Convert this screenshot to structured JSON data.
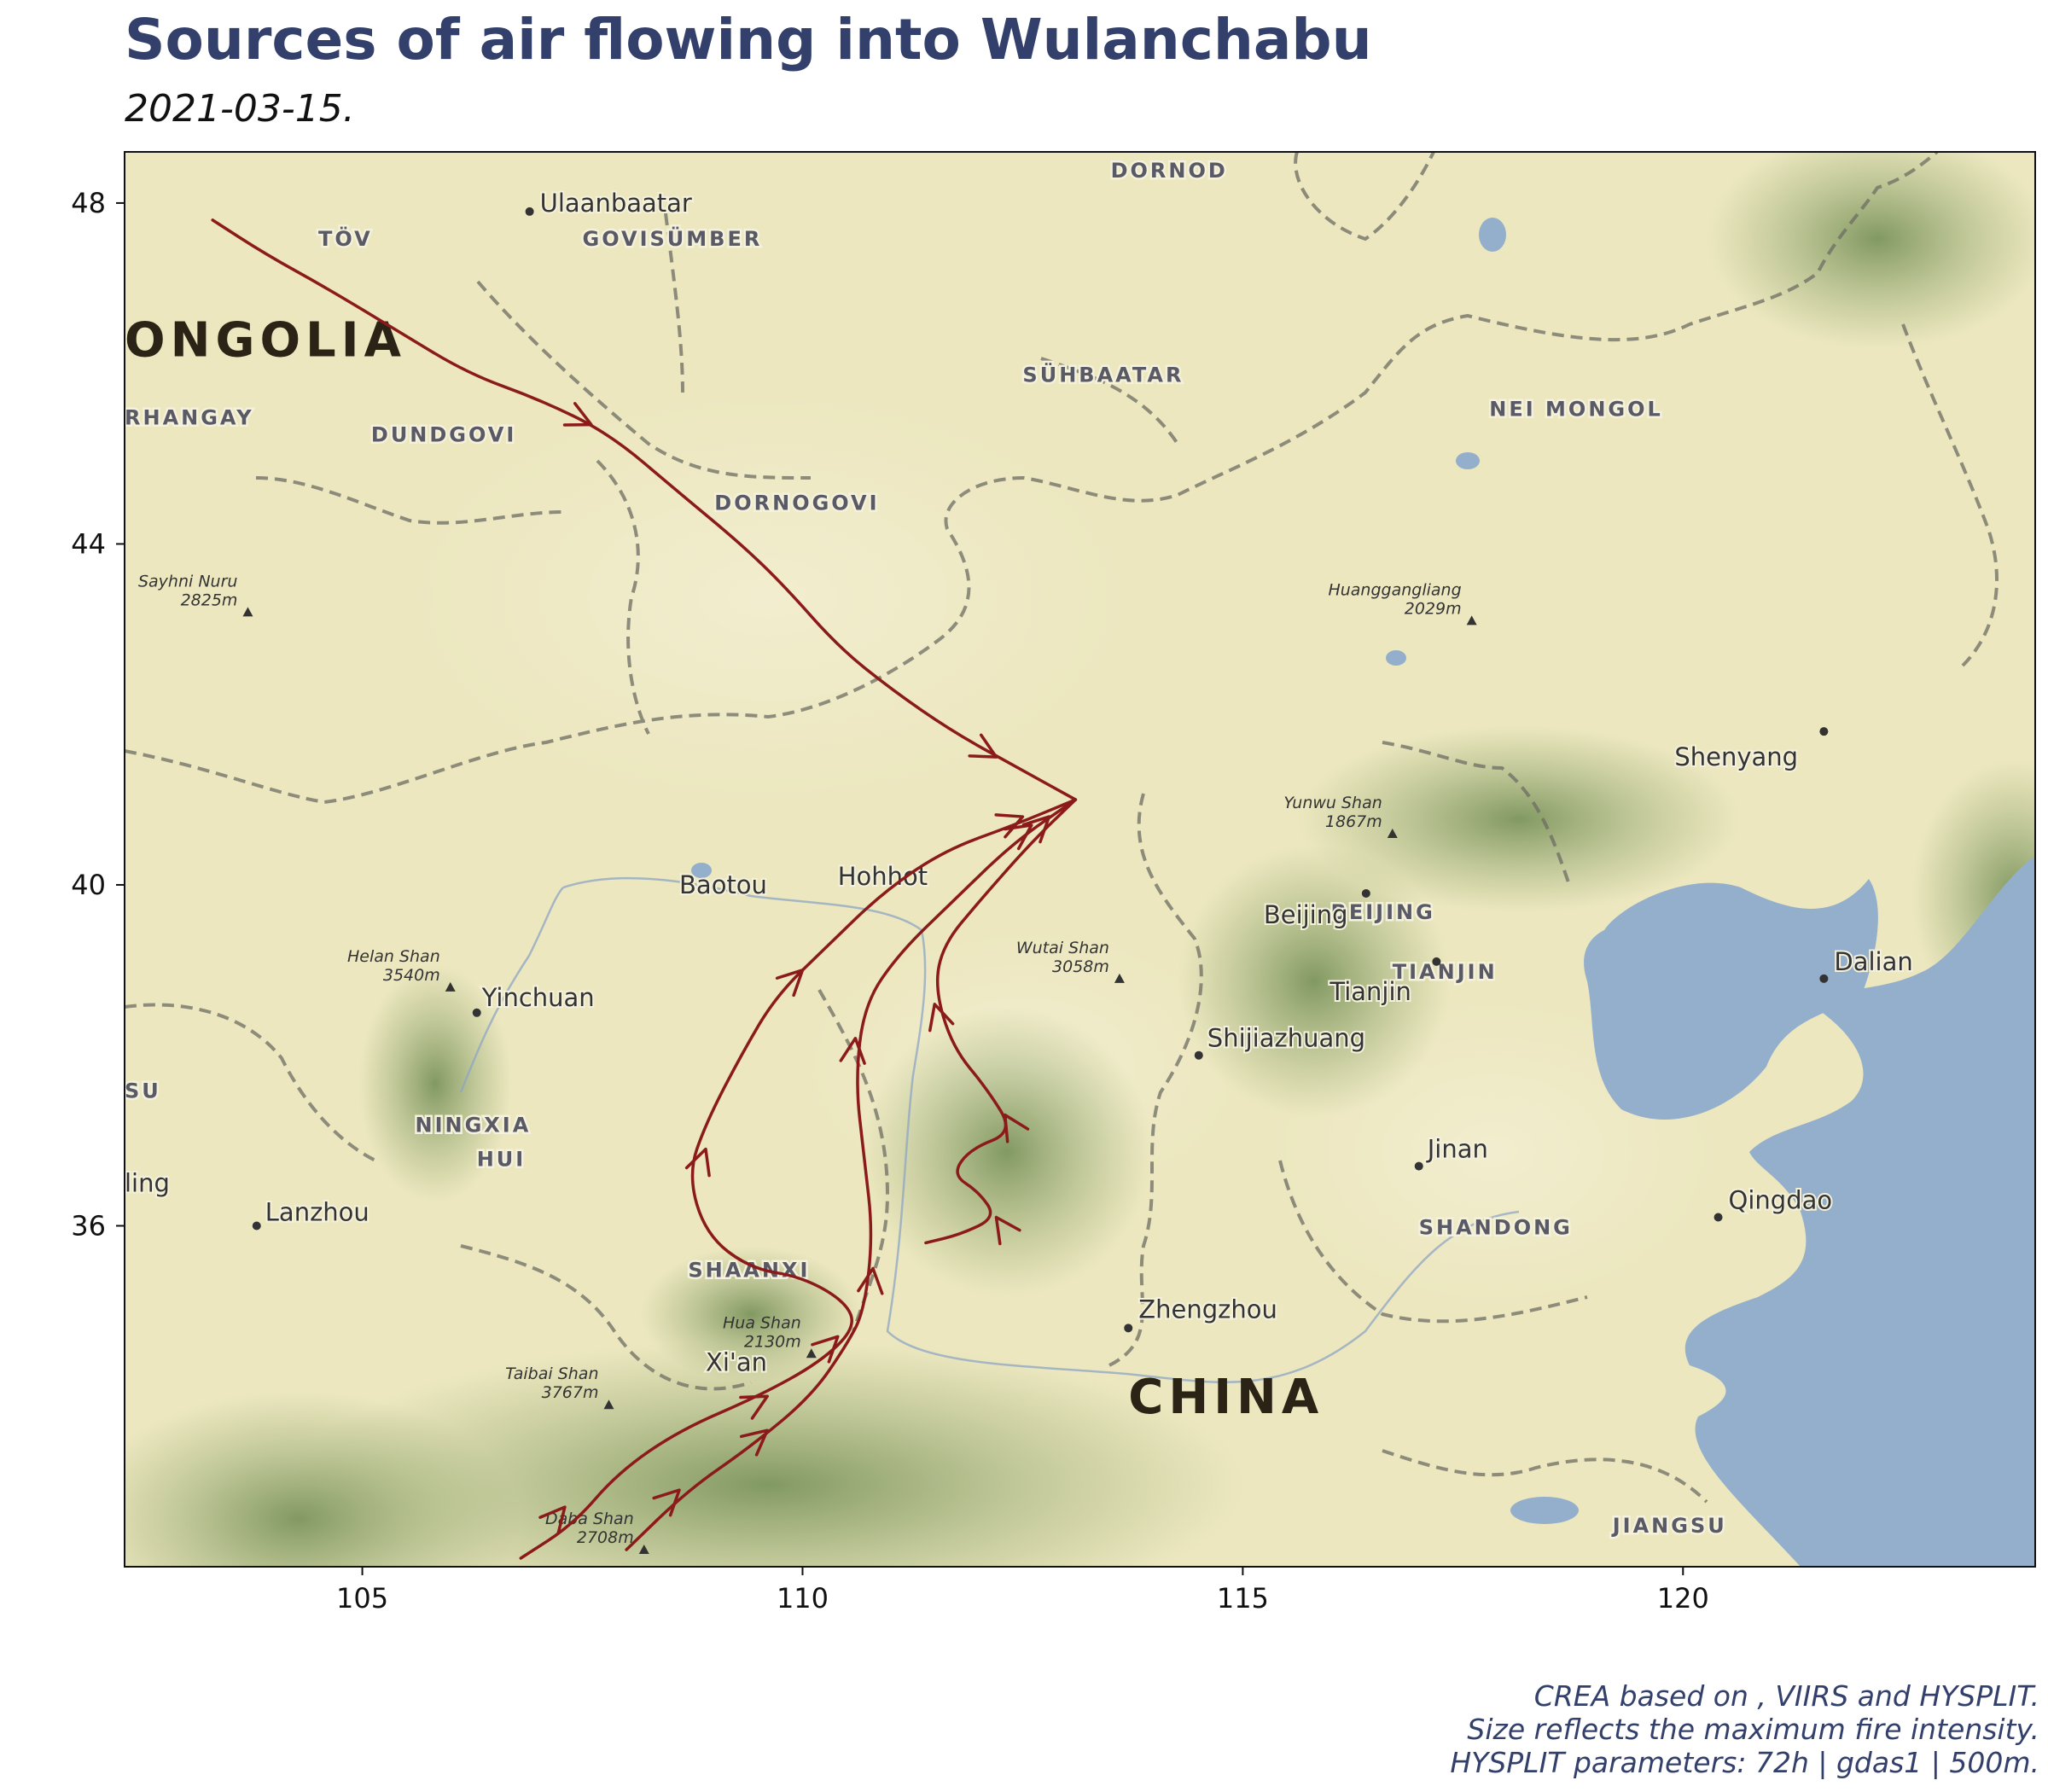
{
  "title": "Sources of air flowing into Wulanchabu",
  "subtitle": "2021-03-15.",
  "caption": [
    "CREA based on , VIIRS and HYSPLIT.",
    "Size reflects the maximum fire intensity.",
    "HYSPLIT parameters: 72h | gdas1 | 500m."
  ],
  "map": {
    "lon_range": [
      102.3,
      124.0
    ],
    "lat_range": [
      32.0,
      48.6
    ],
    "x_ticks": [
      105,
      110,
      115,
      120
    ],
    "y_ticks": [
      36,
      40,
      44,
      48
    ],
    "colors": {
      "land": "#ece7bf",
      "mountain": "#8fa56a",
      "water": "#93afcb",
      "trajectory": "#8b1a1a",
      "border": "#6d6d63"
    },
    "labels": {
      "countries": [
        {
          "text": "ONGOLIA",
          "lon": 102.3,
          "lat": 46.2
        },
        {
          "text": "CHINA",
          "lon": 113.7,
          "lat": 33.8
        }
      ],
      "provinces": [
        {
          "text": "DORNOD",
          "lon": 113.5,
          "lat": 48.3
        },
        {
          "text": "TÖV",
          "lon": 104.5,
          "lat": 47.5
        },
        {
          "text": "GOVISÜMBER",
          "lon": 107.5,
          "lat": 47.5
        },
        {
          "text": "SÜHBAATAR",
          "lon": 112.5,
          "lat": 45.9
        },
        {
          "text": "NEI MONGOL",
          "lon": 117.8,
          "lat": 45.5
        },
        {
          "text": "RHANGAY",
          "lon": 102.3,
          "lat": 45.4
        },
        {
          "text": "DUNDGOVI",
          "lon": 105.1,
          "lat": 45.2
        },
        {
          "text": "DORNOGOVI",
          "lon": 109.0,
          "lat": 44.4
        },
        {
          "text": "BEIJING",
          "lon": 116.0,
          "lat": 39.6
        },
        {
          "text": "TIANJIN",
          "lon": 116.7,
          "lat": 38.9
        },
        {
          "text": "NINGXIA",
          "lon": 105.6,
          "lat": 37.1
        },
        {
          "text": "HUI",
          "lon": 106.3,
          "lat": 36.7
        },
        {
          "text": "SU",
          "lon": 102.3,
          "lat": 37.5
        },
        {
          "text": "SHAANXI",
          "lon": 108.7,
          "lat": 35.4
        },
        {
          "text": "SHANDONG",
          "lon": 117.0,
          "lat": 35.9
        },
        {
          "text": "JIANGSU",
          "lon": 119.2,
          "lat": 32.4
        }
      ],
      "cities": [
        {
          "text": "Ulaanbaatar",
          "lon": 106.9,
          "lat": 47.9,
          "dot": true,
          "dx": 12,
          "dy": 0
        },
        {
          "text": "Baotou",
          "lon": 108.6,
          "lat": 39.9,
          "dot": false
        },
        {
          "text": "Hohhot",
          "lon": 110.4,
          "lat": 40.0,
          "dot": false
        },
        {
          "text": "Yinchuan",
          "lon": 106.3,
          "lat": 38.5,
          "dot": true,
          "dx": 6,
          "dy": -8
        },
        {
          "text": "Lanzhou",
          "lon": 103.8,
          "lat": 36.0,
          "dot": true,
          "dx": 10,
          "dy": -6
        },
        {
          "text": "ling",
          "lon": 102.3,
          "lat": 36.4,
          "dot": false
        },
        {
          "text": "Xi'an",
          "lon": 108.9,
          "lat": 34.3,
          "dot": false
        },
        {
          "text": "Beijing",
          "lon": 116.4,
          "lat": 39.9,
          "dot": true,
          "dx": -120,
          "dy": 35
        },
        {
          "text": "Tianjin",
          "lon": 117.2,
          "lat": 39.1,
          "dot": true,
          "dx": -125,
          "dy": 45
        },
        {
          "text": "Shijiazhuang",
          "lon": 114.5,
          "lat": 38.0,
          "dot": true,
          "dx": 10,
          "dy": -10
        },
        {
          "text": "Jinan",
          "lon": 117.0,
          "lat": 36.7,
          "dot": true,
          "dx": 10,
          "dy": -10
        },
        {
          "text": "Qingdao",
          "lon": 120.4,
          "lat": 36.1,
          "dot": true,
          "dx": 12,
          "dy": -10
        },
        {
          "text": "Zhengzhou",
          "lon": 113.7,
          "lat": 34.8,
          "dot": true,
          "dx": 12,
          "dy": -12
        },
        {
          "text": "Shenyang",
          "lon": 121.6,
          "lat": 41.8,
          "dot": true,
          "dx": -175,
          "dy": 40
        },
        {
          "text": "Dalian",
          "lon": 121.6,
          "lat": 38.9,
          "dot": true,
          "dx": 12,
          "dy": -10
        }
      ],
      "peaks": [
        {
          "name": "Sayhni Nuru",
          "elev": "2825m",
          "lon": 103.7,
          "lat": 43.2
        },
        {
          "name": "Huanggangliang",
          "elev": "2029m",
          "lon": 117.6,
          "lat": 43.1
        },
        {
          "name": "Yunwu Shan",
          "elev": "1867m",
          "lon": 116.7,
          "lat": 40.6
        },
        {
          "name": "Helan Shan",
          "elev": "3540m",
          "lon": 106.0,
          "lat": 38.8
        },
        {
          "name": "Wutai Shan",
          "elev": "3058m",
          "lon": 113.6,
          "lat": 38.9
        },
        {
          "name": "Hua Shan",
          "elev": "2130m",
          "lon": 110.1,
          "lat": 34.5
        },
        {
          "name": "Taibai Shan",
          "elev": "3767m",
          "lon": 107.8,
          "lat": 33.9
        },
        {
          "name": "Daba Shan",
          "elev": "2708m",
          "lon": 108.2,
          "lat": 32.2
        }
      ]
    },
    "trajectories": [
      {
        "name": "trajectory-1",
        "points": [
          [
            113.1,
            41.0
          ],
          [
            112.4,
            41.4
          ],
          [
            111.7,
            41.8
          ],
          [
            111.0,
            42.3
          ],
          [
            110.4,
            42.8
          ],
          [
            109.8,
            43.5
          ],
          [
            109.3,
            44.0
          ],
          [
            108.6,
            44.6
          ],
          [
            107.8,
            45.3
          ],
          [
            107.0,
            45.7
          ],
          [
            106.2,
            46.0
          ],
          [
            105.4,
            46.5
          ],
          [
            104.6,
            47.0
          ],
          [
            103.9,
            47.4
          ],
          [
            103.3,
            47.8
          ]
        ],
        "arrows": [
          [
            112.2,
            41.5
          ],
          [
            107.6,
            45.4
          ]
        ]
      },
      {
        "name": "trajectory-2",
        "points": [
          [
            113.1,
            41.0
          ],
          [
            112.4,
            40.7
          ],
          [
            111.6,
            40.4
          ],
          [
            110.9,
            39.9
          ],
          [
            110.3,
            39.3
          ],
          [
            109.7,
            38.7
          ],
          [
            109.3,
            38.0
          ],
          [
            108.9,
            37.2
          ],
          [
            108.7,
            36.6
          ],
          [
            108.9,
            35.9
          ],
          [
            109.4,
            35.5
          ],
          [
            110.0,
            35.4
          ],
          [
            110.5,
            35.1
          ],
          [
            110.6,
            34.8
          ],
          [
            110.2,
            34.4
          ],
          [
            109.5,
            34.0
          ],
          [
            108.6,
            33.6
          ],
          [
            107.9,
            33.1
          ],
          [
            107.4,
            32.5
          ],
          [
            106.8,
            32.1
          ]
        ],
        "arrows": [
          [
            112.5,
            40.8
          ],
          [
            110.0,
            39.0
          ],
          [
            108.9,
            36.9
          ],
          [
            110.4,
            34.7
          ],
          [
            109.6,
            34.0
          ],
          [
            107.3,
            32.7
          ]
        ]
      },
      {
        "name": "trajectory-3",
        "points": [
          [
            113.1,
            41.0
          ],
          [
            112.4,
            40.5
          ],
          [
            111.7,
            39.8
          ],
          [
            111.1,
            39.2
          ],
          [
            110.7,
            38.6
          ],
          [
            110.6,
            37.7
          ],
          [
            110.7,
            36.8
          ],
          [
            110.8,
            35.9
          ],
          [
            110.7,
            35.0
          ],
          [
            110.5,
            34.6
          ],
          [
            110.1,
            34.0
          ],
          [
            109.4,
            33.4
          ],
          [
            108.7,
            32.9
          ],
          [
            108.0,
            32.2
          ]
        ],
        "arrows": [
          [
            112.6,
            40.7
          ],
          [
            110.6,
            38.2
          ],
          [
            110.8,
            35.5
          ],
          [
            109.6,
            33.6
          ],
          [
            108.6,
            32.9
          ]
        ]
      },
      {
        "name": "trajectory-4",
        "points": [
          [
            113.1,
            41.0
          ],
          [
            112.6,
            40.5
          ],
          [
            112.0,
            39.8
          ],
          [
            111.6,
            39.3
          ],
          [
            111.5,
            38.8
          ],
          [
            111.7,
            38.1
          ],
          [
            112.1,
            37.6
          ],
          [
            112.4,
            37.1
          ],
          [
            111.9,
            36.9
          ],
          [
            111.7,
            36.6
          ],
          [
            112.0,
            36.4
          ],
          [
            112.2,
            36.1
          ],
          [
            111.8,
            35.9
          ],
          [
            111.4,
            35.8
          ]
        ],
        "arrows": [
          [
            112.8,
            40.8
          ],
          [
            111.5,
            38.6
          ],
          [
            112.3,
            37.3
          ],
          [
            112.2,
            36.1
          ]
        ]
      }
    ]
  }
}
